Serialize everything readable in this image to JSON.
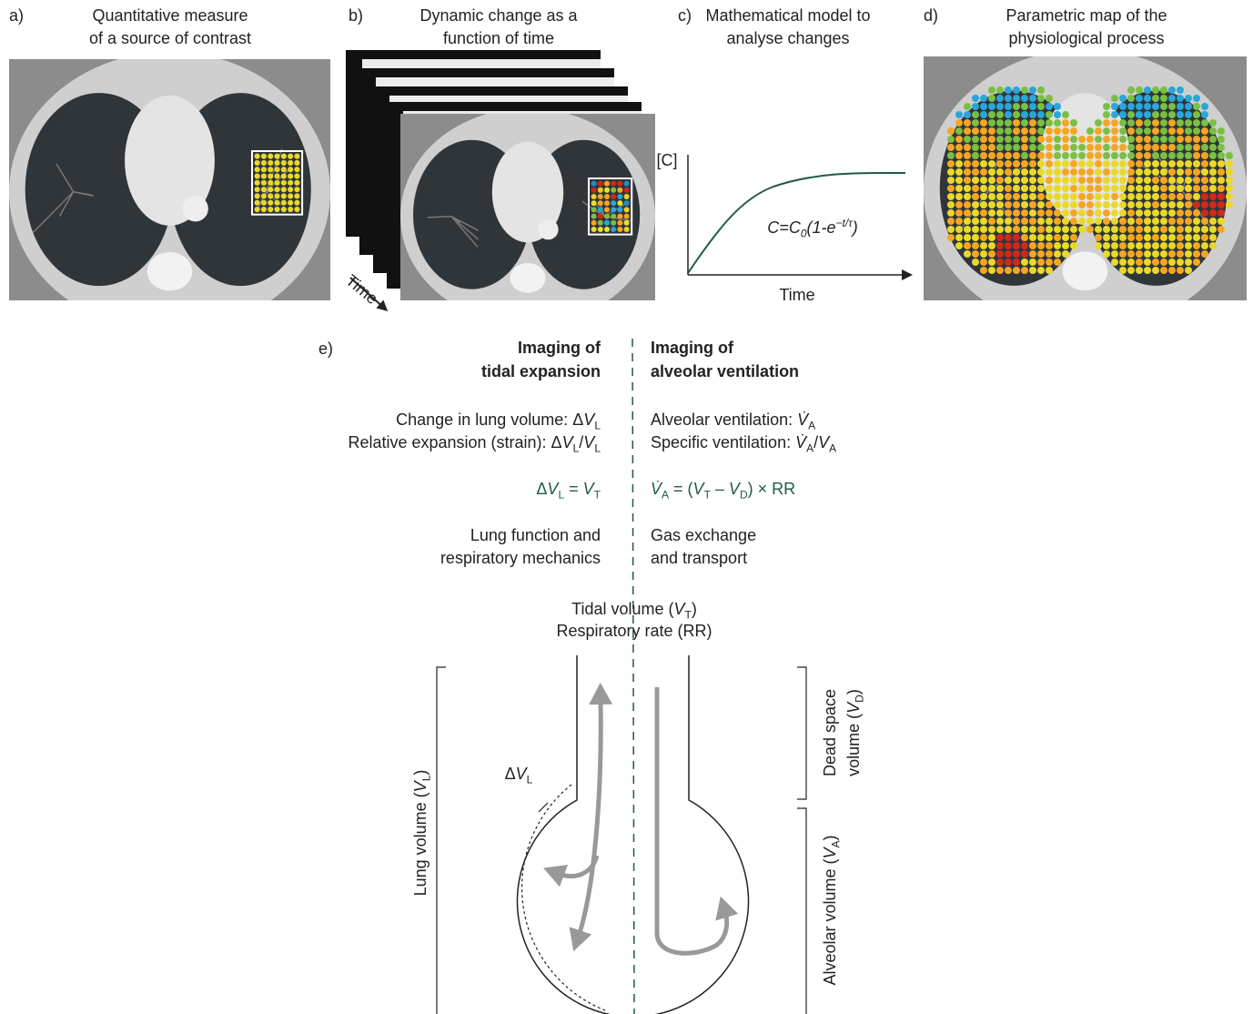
{
  "panels": [
    {
      "label": "a)",
      "title": [
        "Quantitative measure",
        "of a source of contrast"
      ]
    },
    {
      "label": "b)",
      "title": [
        "Dynamic change as a",
        "function of time"
      ],
      "axis_label": "Time"
    },
    {
      "label": "c)",
      "title": [
        "Mathematical model to",
        "analyse changes"
      ],
      "y_label": "[C]",
      "x_label": "Time",
      "formula": [
        "C=C",
        {
          "text": "0",
          "sub": true
        },
        "(1-e",
        {
          "text": "−t/τ",
          "sup": true
        },
        ")"
      ]
    },
    {
      "label": "d)",
      "title": [
        "Parametric map of the",
        "physiological process"
      ]
    }
  ],
  "panel_e": {
    "label": "e)",
    "left": {
      "heading": [
        "Imaging of",
        "tidal expansion"
      ],
      "measures": [
        [
          "Change in lung volume: Δ",
          {
            "text": "V",
            "italic": true
          },
          {
            "text": "L",
            "sub": true
          }
        ],
        [
          "Relative expansion (strain): Δ",
          {
            "text": "V",
            "italic": true
          },
          {
            "text": "L",
            "sub": true
          },
          "/",
          {
            "text": "V",
            "italic": true
          },
          {
            "text": "L",
            "sub": true
          }
        ]
      ],
      "equation": [
        "Δ",
        {
          "text": "V",
          "italic": true
        },
        {
          "text": "L",
          "sub": true
        },
        " = ",
        {
          "text": "V",
          "italic": true
        },
        {
          "text": "T",
          "sub": true
        }
      ],
      "relevance": [
        "Lung function and",
        "respiratory mechanics"
      ]
    },
    "right": {
      "heading": [
        "Imaging of",
        "alveolar ventilation"
      ],
      "measures": [
        [
          "Alveolar ventilation: ",
          {
            "text": "V̇",
            "italic": true
          },
          {
            "text": "A",
            "sub": true
          }
        ],
        [
          "Specific ventilation: ",
          {
            "text": "V̇",
            "italic": true
          },
          {
            "text": "A",
            "sub": true
          },
          "/",
          {
            "text": "V",
            "italic": true
          },
          {
            "text": "A",
            "sub": true
          }
        ]
      ],
      "equation": [
        {
          "text": "V̇",
          "italic": true
        },
        {
          "text": "A",
          "sub": true
        },
        " = (",
        {
          "text": "V",
          "italic": true
        },
        {
          "text": "T",
          "sub": true
        },
        " – ",
        {
          "text": "V",
          "italic": true
        },
        {
          "text": "D",
          "sub": true
        },
        ") × RR"
      ],
      "relevance": [
        "Gas exchange",
        "and transport"
      ]
    },
    "center": [
      [
        "Tidal volume (",
        {
          "text": "V",
          "italic": true
        },
        {
          "text": "T",
          "sub": true
        },
        ")"
      ],
      [
        "Respiratory rate (RR)"
      ]
    ],
    "diagram": {
      "delta_label": [
        "Δ",
        {
          "text": "V",
          "italic": true
        },
        {
          "text": "L",
          "sub": true
        }
      ],
      "lung_volume": [
        "Lung volume (",
        {
          "text": "V",
          "italic": true
        },
        {
          "text": "L",
          "sub": true
        },
        ")"
      ],
      "dead_space": [
        [
          "Dead space"
        ],
        [
          "volume (",
          {
            "text": "V",
            "italic": true
          },
          {
            "text": "D",
            "sub": true
          },
          ")"
        ]
      ],
      "alveolar_volume": [
        "Alveolar volume (",
        {
          "text": "V",
          "italic": true
        },
        {
          "text": "A",
          "sub": true
        },
        ")"
      ]
    }
  }
}
